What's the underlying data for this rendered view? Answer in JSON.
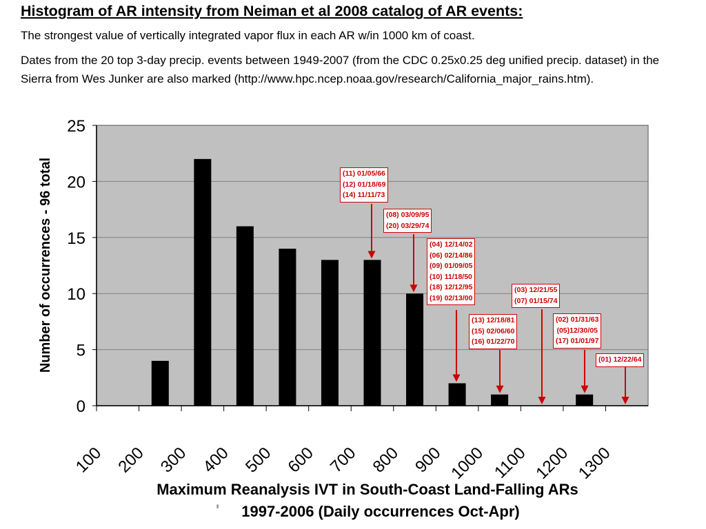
{
  "header": {
    "title": "Histogram of AR intensity from Neiman et al 2008 catalog of AR events:",
    "subtitle": "The strongest value of vertically integrated vapor flux in each AR w/in 1000 km of coast.",
    "note": "Dates from the 20 top 3-day precip. events between 1949-2007 (from the CDC 0.25x0.25 deg unified precip. dataset) in the Sierra from Wes Junker are also marked (http://www.hpc.ncep.noaa.gov/research/California_major_rains.htm)."
  },
  "chart_data": {
    "type": "bar",
    "title": "Histogram of AR intensity from Neiman et al 2008 catalog of AR events",
    "categories": [
      "100-200",
      "200-300",
      "300-400",
      "400-500",
      "500-600",
      "600-700",
      "700-800",
      "800-900",
      "900-1000",
      "1000-1100",
      "1100-1200",
      "1200-1300",
      "1300-"
    ],
    "x_ticks": [
      "100",
      "200",
      "300",
      "400",
      "500",
      "600",
      "700",
      "800",
      "900",
      "1000",
      "1100",
      "1200",
      "1300"
    ],
    "values": [
      0,
      4,
      22,
      16,
      14,
      13,
      13,
      10,
      2,
      1,
      0,
      1,
      0
    ],
    "ylabel": "Number of occurrences - 96 total",
    "xlabel": "Maximum Reanalysis IVT in South-Coast Land-Falling ARs",
    "xlabel2": "1997-2006 (Daily occurrences Oct-Apr)",
    "xlabel2_prefix": "'",
    "y_ticks": [
      0,
      5,
      10,
      15,
      20,
      25
    ],
    "ylim": [
      0,
      25
    ],
    "xlim": [
      100,
      1400
    ],
    "grid": true,
    "annotations": [
      {
        "x": 750,
        "y": 13,
        "lines": [
          "(11) 01/05/66",
          "(12) 01/18/69",
          "(14) 11/11/73"
        ]
      },
      {
        "x": 850,
        "y": 10,
        "lines": [
          "(08) 03/09/95",
          "(20) 03/29/74"
        ]
      },
      {
        "x": 950,
        "y": 2,
        "lines": [
          "(04) 12/14/02",
          "(06) 02/14/86",
          "(09) 01/09/05",
          "(10) 11/18/50",
          "(18) 12/12/95",
          "(19) 02/13/00"
        ]
      },
      {
        "x": 1050,
        "y": 1,
        "lines": [
          "(13) 12/18/81",
          "(15) 02/06/60",
          "(16) 01/22/70"
        ]
      },
      {
        "x": 1150,
        "y": 0,
        "lines": [
          "(03) 12/21/55",
          "(07) 01/15/74"
        ]
      },
      {
        "x": 1250,
        "y": 1,
        "lines": [
          "(02) 01/31/63",
          "(05)12/30/05",
          "(17) 01/01/97"
        ]
      },
      {
        "x": 1350,
        "y": 0,
        "lines": [
          "(01) 12/22/64"
        ]
      }
    ],
    "colors": {
      "bar": "#000000",
      "plot_bg": "#c0c0c0",
      "gridline": "#808080",
      "annotation": "#cc0000"
    }
  }
}
